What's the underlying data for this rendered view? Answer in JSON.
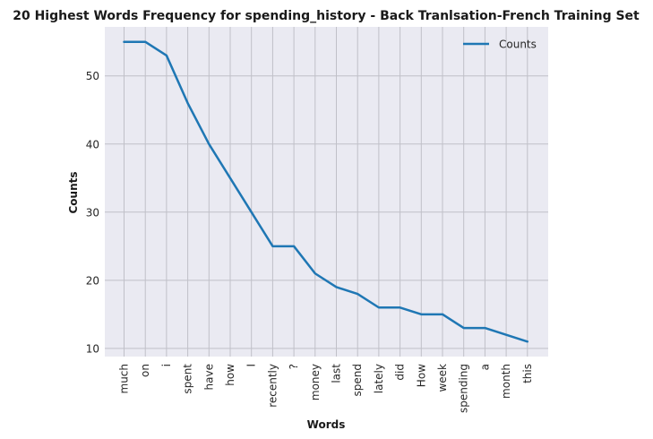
{
  "chart_data": {
    "type": "line",
    "title": "20 Highest Words Frequency for spending_history - Back Tranlsation-French Training Set",
    "xlabel": "Words",
    "ylabel": "Counts",
    "categories": [
      "much",
      "on",
      "i",
      "spent",
      "have",
      "how",
      "I",
      "recently",
      "?",
      "money",
      "last",
      "spend",
      "lately",
      "did",
      "How",
      "week",
      "spending",
      "a",
      "month",
      "this"
    ],
    "series": [
      {
        "name": "Counts",
        "values": [
          55,
          55,
          53,
          46,
          40,
          35,
          30,
          25,
          25,
          21,
          19,
          18,
          16,
          16,
          15,
          15,
          13,
          13,
          12,
          11
        ],
        "color": "#1f77b4"
      }
    ],
    "y_ticks": [
      10,
      20,
      30,
      40,
      50
    ],
    "ylim": [
      8.8,
      57.2
    ],
    "grid": true,
    "legend": "top-right",
    "colors": {
      "background": "#eaeaf2",
      "grid": "#c0c0c8",
      "line": "#1f77b4"
    }
  }
}
